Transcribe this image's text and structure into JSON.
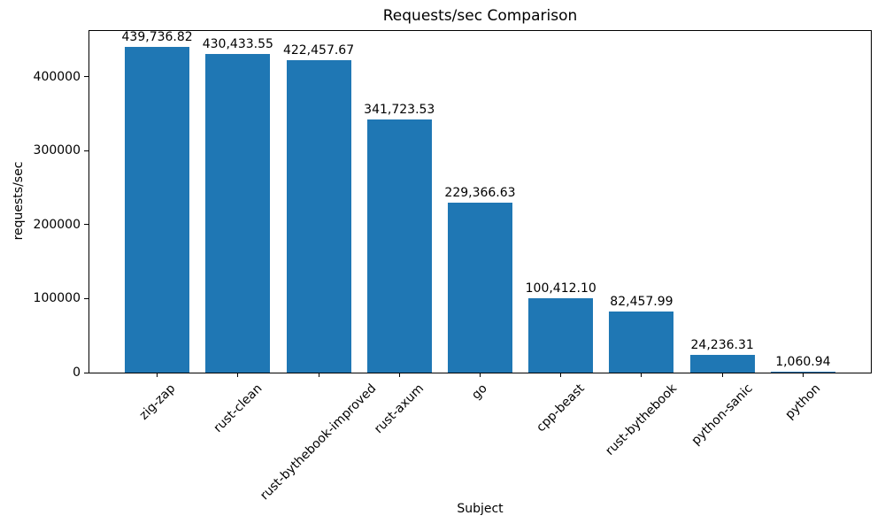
{
  "chart_data": {
    "type": "bar",
    "title": "Requests/sec Comparison",
    "xlabel": "Subject",
    "ylabel": "requests/sec",
    "categories": [
      "zig-zap",
      "rust-clean",
      "rust-bythebook-improved",
      "rust-axum",
      "go",
      "cpp-beast",
      "rust-bythebook",
      "python-sanic",
      "python"
    ],
    "values": [
      439736.82,
      430433.55,
      422457.67,
      341723.53,
      229366.63,
      100412.1,
      82457.99,
      24236.31,
      1060.94
    ],
    "value_labels": [
      "439,736.82",
      "430,433.55",
      "422,457.67",
      "341,723.53",
      "229,366.63",
      "100,412.10",
      "82,457.99",
      "24,236.31",
      "1,060.94"
    ],
    "yticks": [
      0,
      100000,
      200000,
      300000,
      400000
    ],
    "ytick_labels": [
      "0",
      "100000",
      "200000",
      "300000",
      "400000"
    ],
    "ylim": [
      0,
      461723.66
    ],
    "bar_width_fraction": 0.8,
    "x_margin_fraction": 0.05,
    "bar_color": "#1f77b4",
    "text_color": "#000000",
    "grid": false,
    "legend": null
  }
}
